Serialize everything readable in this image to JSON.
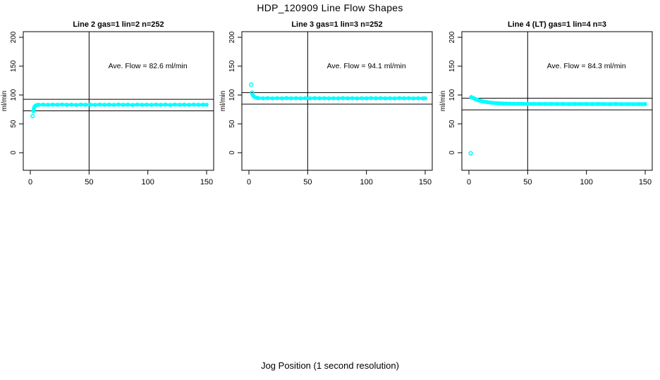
{
  "page": {
    "title": "HDP_120909  Line Flow Shapes",
    "xlabel": "Jog Position (1 second resolution)",
    "background": "#ffffff",
    "axis_color": "#000000",
    "marker_color": "#00ffff"
  },
  "chart_data": [
    {
      "type": "scatter",
      "title": "Line 2 gas=1 lin=2 n=252",
      "ylabel": "ml/min",
      "annotation": "Ave. Flow =  82.6  ml/min",
      "annotation_pos": {
        "x": 100,
        "y": 150
      },
      "ave_flow": 82.6,
      "ref_lines_y": [
        92.6,
        72.6
      ],
      "vline_x": 50,
      "xticks": [
        0,
        50,
        100,
        150
      ],
      "yticks": [
        0,
        50,
        100,
        150,
        200
      ],
      "xlim": [
        -6,
        156
      ],
      "ylim": [
        -30,
        210
      ],
      "band_width": 4,
      "lead_points": [
        [
          2,
          63.5
        ]
      ],
      "band_points": [
        [
          2.6,
          72
        ],
        [
          3,
          76
        ],
        [
          3.5,
          79
        ],
        [
          4,
          80.5
        ],
        [
          4.5,
          81.5
        ],
        [
          5,
          82.2
        ],
        [
          6,
          82.8
        ],
        [
          7,
          83.0
        ],
        [
          11,
          83.3
        ],
        [
          15,
          82.9
        ],
        [
          19,
          83.4
        ],
        [
          23,
          83.1
        ],
        [
          27,
          83.5
        ],
        [
          31,
          83.0
        ],
        [
          35,
          83.3
        ],
        [
          39,
          82.8
        ],
        [
          43,
          83.4
        ],
        [
          47,
          83.1
        ],
        [
          51,
          83.3
        ],
        [
          55,
          82.9
        ],
        [
          59,
          83.4
        ],
        [
          63,
          83.0
        ],
        [
          67,
          83.3
        ],
        [
          71,
          82.9
        ],
        [
          75,
          83.5
        ],
        [
          79,
          83.1
        ],
        [
          83,
          83.3
        ],
        [
          87,
          82.8
        ],
        [
          91,
          83.4
        ],
        [
          95,
          83.0
        ],
        [
          99,
          83.3
        ],
        [
          103,
          82.9
        ],
        [
          107,
          83.4
        ],
        [
          111,
          83.1
        ],
        [
          115,
          83.3
        ],
        [
          119,
          82.8
        ],
        [
          123,
          83.4
        ],
        [
          127,
          83.0
        ],
        [
          131,
          83.3
        ],
        [
          135,
          82.9
        ],
        [
          139,
          83.4
        ],
        [
          143,
          83.1
        ],
        [
          147,
          83.3
        ],
        [
          150,
          83.0
        ]
      ]
    },
    {
      "type": "scatter",
      "title": "Line 3 gas=1 lin=3 n=252",
      "ylabel": "ml/min",
      "annotation": "Ave. Flow =  94.1  ml/min",
      "annotation_pos": {
        "x": 100,
        "y": 150
      },
      "ave_flow": 94.1,
      "ref_lines_y": [
        104.1,
        84.1
      ],
      "vline_x": 50,
      "xticks": [
        0,
        50,
        100,
        150
      ],
      "yticks": [
        0,
        50,
        100,
        150,
        200
      ],
      "xlim": [
        -6,
        156
      ],
      "ylim": [
        -30,
        210
      ],
      "band_width": 4,
      "lead_points": [
        [
          2,
          118
        ],
        [
          2.6,
          104
        ]
      ],
      "band_points": [
        [
          3.2,
          100
        ],
        [
          3.8,
          98.5
        ],
        [
          4.5,
          97
        ],
        [
          5.5,
          95.8
        ],
        [
          7,
          95
        ],
        [
          8,
          94.8
        ],
        [
          12,
          94.3
        ],
        [
          16,
          94.6
        ],
        [
          20,
          94.1
        ],
        [
          24,
          94.5
        ],
        [
          28,
          94.2
        ],
        [
          32,
          94.6
        ],
        [
          36,
          94.3
        ],
        [
          40,
          94.5
        ],
        [
          44,
          94.1
        ],
        [
          48,
          94.4
        ],
        [
          52,
          94.2
        ],
        [
          56,
          94.6
        ],
        [
          60,
          94.3
        ],
        [
          64,
          94.5
        ],
        [
          68,
          94.1
        ],
        [
          72,
          94.4
        ],
        [
          76,
          94.2
        ],
        [
          80,
          94.6
        ],
        [
          84,
          94.3
        ],
        [
          88,
          94.5
        ],
        [
          92,
          94.1
        ],
        [
          96,
          94.4
        ],
        [
          100,
          94.2
        ],
        [
          104,
          94.6
        ],
        [
          108,
          94.3
        ],
        [
          112,
          94.5
        ],
        [
          116,
          94.1
        ],
        [
          120,
          94.4
        ],
        [
          124,
          94.2
        ],
        [
          128,
          94.6
        ],
        [
          132,
          94.3
        ],
        [
          136,
          94.5
        ],
        [
          140,
          94.1
        ],
        [
          144,
          94.4
        ],
        [
          148,
          94.2
        ],
        [
          150,
          94.3
        ]
      ]
    },
    {
      "type": "scatter",
      "title": "Line 4 (LT) gas=1 lin=4 n=3",
      "ylabel": "ml/min",
      "annotation": "Ave. Flow =  84.3  ml/min",
      "annotation_pos": {
        "x": 100,
        "y": 150
      },
      "ave_flow": 84.3,
      "ref_lines_y": [
        94.3,
        74.3
      ],
      "vline_x": 50,
      "xticks": [
        0,
        50,
        100,
        150
      ],
      "yticks": [
        0,
        50,
        100,
        150,
        200
      ],
      "xlim": [
        -6,
        156
      ],
      "ylim": [
        -30,
        210
      ],
      "band_width": 5,
      "lead_points": [
        [
          1.5,
          -1
        ]
      ],
      "band_points": [
        [
          2,
          96.5
        ],
        [
          3,
          95.4
        ],
        [
          4,
          94.4
        ],
        [
          5,
          93.4
        ],
        [
          6,
          92.6
        ],
        [
          7,
          91.8
        ],
        [
          8,
          91.1
        ],
        [
          9,
          90.4
        ],
        [
          10,
          89.9
        ],
        [
          12,
          88.9
        ],
        [
          14,
          88.1
        ],
        [
          16,
          87.5
        ],
        [
          18,
          86.9
        ],
        [
          20,
          86.5
        ],
        [
          23,
          86.0
        ],
        [
          26,
          85.6
        ],
        [
          29,
          85.3
        ],
        [
          32,
          85.1
        ],
        [
          35,
          84.9
        ],
        [
          38,
          84.8
        ],
        [
          42,
          84.7
        ],
        [
          46,
          84.6
        ],
        [
          50,
          84.6
        ],
        [
          55,
          84.5
        ],
        [
          60,
          84.5
        ],
        [
          65,
          84.4
        ],
        [
          70,
          84.5
        ],
        [
          75,
          84.4
        ],
        [
          80,
          84.4
        ],
        [
          85,
          84.3
        ],
        [
          90,
          84.4
        ],
        [
          95,
          84.3
        ],
        [
          100,
          84.4
        ],
        [
          105,
          84.3
        ],
        [
          110,
          84.4
        ],
        [
          115,
          84.3
        ],
        [
          120,
          84.2
        ],
        [
          125,
          84.4
        ],
        [
          130,
          84.2
        ],
        [
          135,
          84.3
        ],
        [
          140,
          84.2
        ],
        [
          145,
          84.3
        ],
        [
          148,
          84.2
        ],
        [
          150,
          84.3
        ]
      ]
    }
  ]
}
